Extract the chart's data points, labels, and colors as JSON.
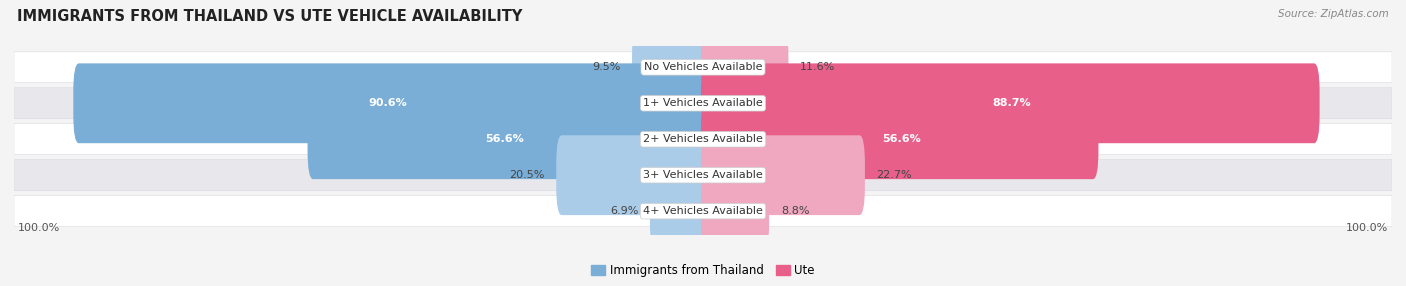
{
  "title": "IMMIGRANTS FROM THAILAND VS UTE VEHICLE AVAILABILITY",
  "source": "Source: ZipAtlas.com",
  "categories": [
    "No Vehicles Available",
    "1+ Vehicles Available",
    "2+ Vehicles Available",
    "3+ Vehicles Available",
    "4+ Vehicles Available"
  ],
  "left_values": [
    9.5,
    90.6,
    56.6,
    20.5,
    6.9
  ],
  "right_values": [
    11.6,
    88.7,
    56.6,
    22.7,
    8.8
  ],
  "left_color_large": "#7aaed6",
  "left_color_small": "#aacce8",
  "right_color_large": "#e8608a",
  "right_color_small": "#f0a8c0",
  "left_label": "Immigrants from Thailand",
  "right_label": "Ute",
  "left_legend_color": "#7aaed6",
  "right_legend_color": "#e8608a",
  "axis_label_left": "100.0%",
  "axis_label_right": "100.0%",
  "bg_color": "#f4f4f4",
  "row_bg_even": "#ffffff",
  "row_bg_odd": "#e8e8ec",
  "title_fontsize": 10.5,
  "bar_height": 0.62,
  "max_val": 100.0,
  "large_threshold": 40
}
